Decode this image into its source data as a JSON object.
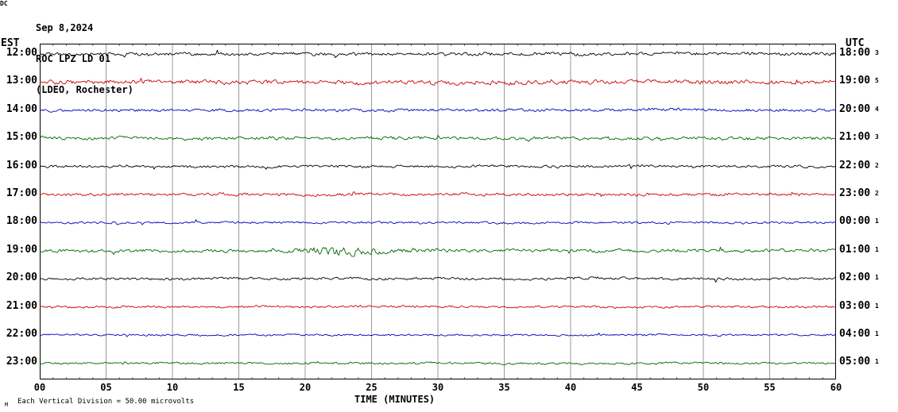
{
  "header": {
    "date": "Sep 8,2024",
    "station": "ROC LPZ LD 01",
    "location": "(LDEO, Rochester)"
  },
  "axes": {
    "left_title": "EST",
    "right_title": "UTC",
    "right_corner_title": "DC",
    "x_label": "TIME (MINUTES)",
    "x_ticks": [
      "00",
      "05",
      "10",
      "15",
      "20",
      "25",
      "30",
      "35",
      "40",
      "45",
      "50",
      "55",
      "60"
    ]
  },
  "footer": {
    "prefix": "M",
    "text": "Each Vertical Division =   50.00 microvolts"
  },
  "chart_data": {
    "type": "line",
    "title": "ROC LPZ LD 01 helicorder seismogram, Sep 8 2024 (LDEO, Rochester)",
    "x_range_minutes": [
      0,
      60
    ],
    "minutes_per_row": 60,
    "grid_interval_minutes": 5,
    "vertical_division_microvolts": 50.0,
    "colors": {
      "black": "#000000",
      "red": "#cc0000",
      "blue": "#0000bb",
      "green": "#006600",
      "grid": "#999999",
      "border": "#000000"
    },
    "rows": [
      {
        "est": "12:00",
        "utc": "18:00",
        "dc_value": "3",
        "color": "#000000",
        "amplitude": 1.2,
        "seed": 101
      },
      {
        "est": "13:00",
        "utc": "19:00",
        "dc_value": "5",
        "color": "#cc0000",
        "amplitude": 1.6,
        "seed": 102
      },
      {
        "est": "14:00",
        "utc": "20:00",
        "dc_value": "4",
        "color": "#0000bb",
        "amplitude": 1.1,
        "seed": 103
      },
      {
        "est": "15:00",
        "utc": "21:00",
        "dc_value": "3",
        "color": "#006600",
        "amplitude": 1.2,
        "seed": 104
      },
      {
        "est": "16:00",
        "utc": "22:00",
        "dc_value": "2",
        "color": "#000000",
        "amplitude": 1.0,
        "seed": 105
      },
      {
        "est": "17:00",
        "utc": "23:00",
        "dc_value": "2",
        "color": "#cc0000",
        "amplitude": 1.1,
        "seed": 106
      },
      {
        "est": "18:00",
        "utc": "00:00",
        "dc_value": "1",
        "color": "#0000bb",
        "amplitude": 0.8,
        "seed": 107
      },
      {
        "est": "19:00",
        "utc": "01:00",
        "dc_value": "1",
        "color": "#006600",
        "amplitude": 1.2,
        "seed": 108
      },
      {
        "est": "20:00",
        "utc": "02:00",
        "dc_value": "1",
        "color": "#000000",
        "amplitude": 1.0,
        "seed": 109
      },
      {
        "est": "21:00",
        "utc": "03:00",
        "dc_value": "1",
        "color": "#cc0000",
        "amplitude": 0.8,
        "seed": 110
      },
      {
        "est": "22:00",
        "utc": "04:00",
        "dc_value": "1",
        "color": "#0000bb",
        "amplitude": 0.7,
        "seed": 111
      },
      {
        "est": "23:00",
        "utc": "05:00",
        "dc_value": "1",
        "color": "#006600",
        "amplitude": 0.8,
        "seed": 112
      }
    ],
    "events": [
      {
        "row_index": 7,
        "start_minute": 19,
        "end_minute": 27,
        "amplitude_multiplier": 3.0
      }
    ]
  }
}
